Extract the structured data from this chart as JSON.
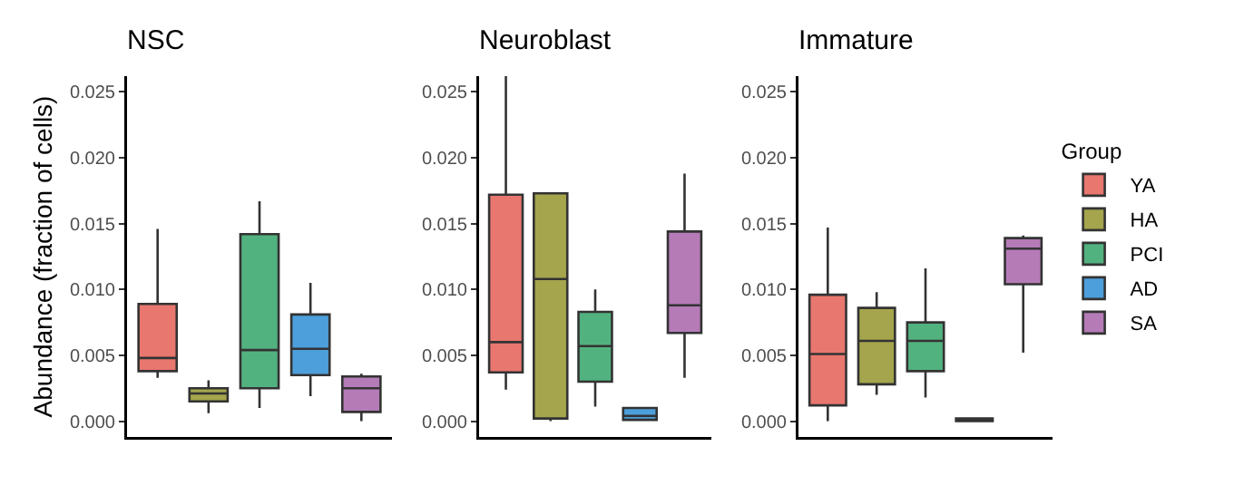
{
  "chart_data": [
    {
      "type": "box",
      "title": "NSC",
      "ylabel": "Abundance (fraction of cells)",
      "categories": [
        null,
        null,
        null,
        null,
        null
      ],
      "ylim": [
        -0.0012,
        0.0262
      ],
      "yticks": [
        {
          "value": 0,
          "label": "0.000"
        },
        {
          "value": 0.005,
          "label": "0.005"
        },
        {
          "value": 0.01,
          "label": "0.010"
        },
        {
          "value": 0.015,
          "label": "0.015"
        },
        {
          "value": 0.02,
          "label": "0.020"
        },
        {
          "value": 0.025,
          "label": "0.025"
        }
      ],
      "tick_labels": "y",
      "legend": false,
      "series": [
        {
          "color": "#e8776f",
          "boxes": [
            {
              "low": 0.0033,
              "q1": 0.0038,
              "median": 0.0048,
              "q3": 0.0089,
              "high": 0.0146
            },
            null,
            null,
            null,
            null
          ]
        },
        {
          "color": "#a4a54c",
          "boxes": [
            null,
            {
              "low": 0.0006,
              "q1": 0.0015,
              "median": 0.0021,
              "q3": 0.0025,
              "high": 0.0031
            },
            null,
            null,
            null
          ]
        },
        {
          "color": "#52b27f",
          "boxes": [
            null,
            null,
            {
              "low": 0.001,
              "q1": 0.0025,
              "median": 0.0054,
              "q3": 0.0142,
              "high": 0.0167
            },
            null,
            null
          ]
        },
        {
          "color": "#4d9fdb",
          "boxes": [
            null,
            null,
            null,
            {
              "low": 0.0019,
              "q1": 0.0035,
              "median": 0.0055,
              "q3": 0.0081,
              "high": 0.0105
            },
            null
          ]
        },
        {
          "color": "#b57bb7",
          "boxes": [
            null,
            null,
            null,
            null,
            {
              "low": 0.0,
              "q1": 0.0007,
              "median": 0.0025,
              "q3": 0.0034,
              "high": 0.0036
            }
          ]
        }
      ]
    },
    {
      "type": "box",
      "title": "Neuroblast",
      "categories": [
        null,
        null,
        null,
        null,
        null
      ],
      "ylim": [
        -0.0012,
        0.0262
      ],
      "yticks": [
        {
          "value": 0,
          "label": "0.000"
        },
        {
          "value": 0.005,
          "label": "0.005"
        },
        {
          "value": 0.01,
          "label": "0.010"
        },
        {
          "value": 0.015,
          "label": "0.015"
        },
        {
          "value": 0.02,
          "label": "0.020"
        },
        {
          "value": 0.025,
          "label": "0.025"
        }
      ],
      "tick_labels": "y",
      "legend": false,
      "series": [
        {
          "color": "#e8776f",
          "boxes": [
            {
              "low": 0.0024,
              "q1": 0.0037,
              "median": 0.006,
              "q3": 0.0172,
              "high": 0.0262
            },
            null,
            null,
            null,
            null
          ]
        },
        {
          "color": "#a4a54c",
          "boxes": [
            null,
            {
              "low": 0.0,
              "q1": 0.0002,
              "median": 0.0108,
              "q3": 0.0173,
              "high": 0.0173
            },
            null,
            null,
            null
          ]
        },
        {
          "color": "#52b27f",
          "boxes": [
            null,
            null,
            {
              "low": 0.0011,
              "q1": 0.003,
              "median": 0.0057,
              "q3": 0.0083,
              "high": 0.01
            },
            null,
            null
          ]
        },
        {
          "color": "#4d9fdb",
          "boxes": [
            null,
            null,
            null,
            {
              "low": 0.0,
              "q1": 0.0001,
              "median": 0.0004,
              "q3": 0.001,
              "high": 0.001
            },
            null
          ]
        },
        {
          "color": "#b57bb7",
          "boxes": [
            null,
            null,
            null,
            null,
            {
              "low": 0.0033,
              "q1": 0.0067,
              "median": 0.0088,
              "q3": 0.0144,
              "high": 0.0188
            }
          ]
        }
      ]
    },
    {
      "type": "box",
      "title": "Immature",
      "categories": [
        null,
        null,
        null,
        null,
        null
      ],
      "ylim": [
        -0.0012,
        0.0262
      ],
      "yticks": [
        {
          "value": 0,
          "label": "0.000"
        },
        {
          "value": 0.005,
          "label": "0.005"
        },
        {
          "value": 0.01,
          "label": "0.010"
        },
        {
          "value": 0.015,
          "label": "0.015"
        },
        {
          "value": 0.02,
          "label": "0.020"
        },
        {
          "value": 0.025,
          "label": "0.025"
        }
      ],
      "tick_labels": "y",
      "legend": "right",
      "legend_title": "Group",
      "series": [
        {
          "name": "YA",
          "color": "#e8776f",
          "boxes": [
            {
              "low": 0.0,
              "q1": 0.0012,
              "median": 0.0051,
              "q3": 0.0096,
              "high": 0.0147
            },
            null,
            null,
            null,
            null
          ]
        },
        {
          "name": "HA",
          "color": "#a4a54c",
          "boxes": [
            null,
            {
              "low": 0.002,
              "q1": 0.0028,
              "median": 0.0061,
              "q3": 0.0086,
              "high": 0.0098
            },
            null,
            null,
            null
          ]
        },
        {
          "name": "PCI",
          "color": "#52b27f",
          "boxes": [
            null,
            null,
            {
              "low": 0.0018,
              "q1": 0.0038,
              "median": 0.0061,
              "q3": 0.0075,
              "high": 0.0116
            },
            null,
            null
          ]
        },
        {
          "name": "AD",
          "color": "#4d9fdb",
          "boxes": [
            null,
            null,
            null,
            {
              "low": 0.0,
              "q1": 0.0,
              "median": 0.0001,
              "q3": 0.0002,
              "high": 0.0002
            },
            null
          ]
        },
        {
          "name": "SA",
          "color": "#b57bb7",
          "boxes": [
            null,
            null,
            null,
            null,
            {
              "low": 0.0052,
              "q1": 0.0104,
              "median": 0.0131,
              "q3": 0.0139,
              "high": 0.0141
            }
          ]
        }
      ]
    }
  ]
}
